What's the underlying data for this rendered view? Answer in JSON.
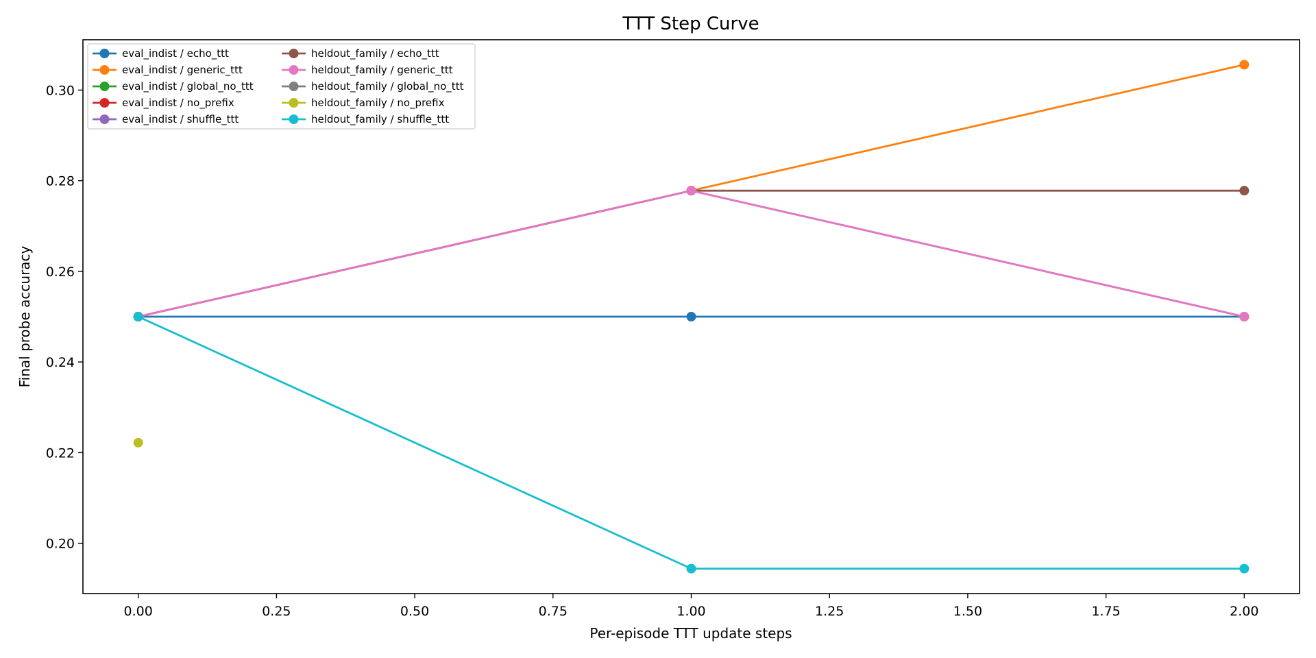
{
  "chart_data": {
    "type": "line",
    "title": "TTT Step Curve",
    "xlabel": "Per-episode TTT update steps",
    "ylabel": "Final probe accuracy",
    "xlim": [
      -0.1,
      2.1
    ],
    "ylim": [
      0.1889,
      0.3111
    ],
    "xticks": [
      0.0,
      0.25,
      0.5,
      0.75,
      1.0,
      1.25,
      1.5,
      1.75,
      2.0
    ],
    "xtick_labels": [
      "0.00",
      "0.25",
      "0.50",
      "0.75",
      "1.00",
      "1.25",
      "1.50",
      "1.75",
      "2.00"
    ],
    "yticks": [
      0.2,
      0.22,
      0.24,
      0.26,
      0.28,
      0.3
    ],
    "ytick_labels": [
      "0.20",
      "0.22",
      "0.24",
      "0.26",
      "0.28",
      "0.30"
    ],
    "grid": false,
    "legend": {
      "placement": "top-left",
      "columns": 2
    },
    "series": [
      {
        "name": "eval_indist / echo_ttt",
        "color": "#1f77b4",
        "x": [
          0,
          1,
          2
        ],
        "y": [
          0.25,
          0.25,
          0.25
        ]
      },
      {
        "name": "eval_indist / generic_ttt",
        "color": "#ff7f0e",
        "x": [
          0,
          1,
          2
        ],
        "y": [
          0.25,
          0.2778,
          0.3056
        ]
      },
      {
        "name": "eval_indist / global_no_ttt",
        "color": "#2ca02c",
        "x": [
          0
        ],
        "y": [
          0.25
        ]
      },
      {
        "name": "eval_indist / no_prefix",
        "color": "#d62728",
        "x": [
          0
        ],
        "y": [
          0.25
        ]
      },
      {
        "name": "eval_indist / shuffle_ttt",
        "color": "#9467bd",
        "x": [
          0,
          1,
          2
        ],
        "y": [
          0.25,
          0.2778,
          0.25
        ]
      },
      {
        "name": "heldout_family / echo_ttt",
        "color": "#8c564b",
        "x": [
          0,
          1,
          2
        ],
        "y": [
          0.25,
          0.2778,
          0.2778
        ]
      },
      {
        "name": "heldout_family / generic_ttt",
        "color": "#e377c2",
        "x": [
          0,
          1,
          2
        ],
        "y": [
          0.25,
          0.2778,
          0.25
        ]
      },
      {
        "name": "heldout_family / global_no_ttt",
        "color": "#7f7f7f",
        "x": [
          0
        ],
        "y": [
          0.25
        ]
      },
      {
        "name": "heldout_family / no_prefix",
        "color": "#bcbd22",
        "x": [
          0
        ],
        "y": [
          0.2222
        ]
      },
      {
        "name": "heldout_family / shuffle_ttt",
        "color": "#17becf",
        "x": [
          0,
          1,
          2
        ],
        "y": [
          0.25,
          0.1944,
          0.1944
        ]
      }
    ]
  }
}
